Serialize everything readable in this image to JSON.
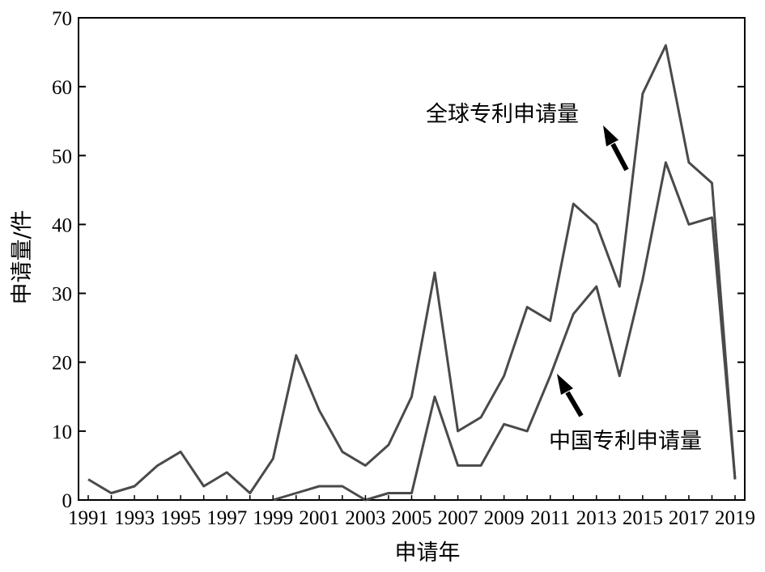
{
  "chart_data": {
    "type": "line",
    "xlabel": "申请年",
    "ylabel": "申请量/件",
    "x": [
      1991,
      1992,
      1993,
      1994,
      1995,
      1996,
      1997,
      1998,
      1999,
      2000,
      2001,
      2002,
      2003,
      2004,
      2005,
      2006,
      2007,
      2008,
      2009,
      2010,
      2011,
      2012,
      2013,
      2014,
      2015,
      2016,
      2017,
      2018,
      2019
    ],
    "xlim": [
      1991,
      2019
    ],
    "ylim": [
      0,
      70
    ],
    "x_ticks": [
      "1991",
      "1993",
      "1995",
      "1997",
      "1999",
      "2001",
      "2003",
      "2005",
      "2007",
      "2009",
      "2011",
      "2013",
      "2015",
      "2017",
      "2019"
    ],
    "y_ticks": [
      "0",
      "10",
      "20",
      "30",
      "40",
      "50",
      "60",
      "70"
    ],
    "grid": false,
    "line_color": "#4a4a4a",
    "series": [
      {
        "name": "全球专利申请量",
        "values": [
          3,
          1,
          2,
          5,
          7,
          2,
          4,
          1,
          6,
          21,
          13,
          7,
          5,
          8,
          15,
          33,
          10,
          12,
          18,
          28,
          26,
          43,
          40,
          31,
          59,
          66,
          49,
          46,
          3
        ]
      },
      {
        "name": "中国专利申请量",
        "values": [
          null,
          null,
          null,
          null,
          null,
          null,
          null,
          null,
          0,
          1,
          2,
          2,
          0,
          1,
          1,
          15,
          5,
          5,
          11,
          10,
          18,
          27,
          31,
          18,
          32,
          49,
          40,
          41,
          3
        ]
      }
    ],
    "annotations": [
      {
        "text": "全球专利申请量",
        "series": 0
      },
      {
        "text": "中国专利申请量",
        "series": 1
      }
    ]
  }
}
